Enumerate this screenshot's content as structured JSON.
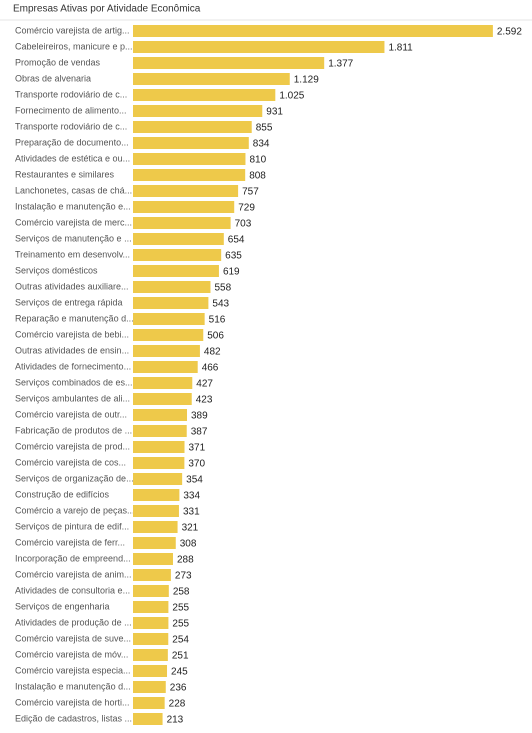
{
  "chart_data": {
    "type": "hbar",
    "title": "Empresas Ativas por Atividade Econômica",
    "color": "#eec94a",
    "xlim": [
      0,
      2600
    ],
    "categories": [
      "Comércio varejista de artig...",
      "Cabeleireiros, manicure e p...",
      "Promoção de vendas",
      "Obras de alvenaria",
      "Transporte rodoviário de c...",
      "Fornecimento de alimento...",
      "Transporte rodoviário de c...",
      "Preparação de documento...",
      "Atividades de estética e ou...",
      "Restaurantes e similares",
      "Lanchonetes, casas de chá...",
      "Instalação e manutenção e...",
      "Comércio varejista de merc...",
      "Serviços de manutenção e ...",
      "Treinamento em desenvolv...",
      "Serviços domésticos",
      "Outras atividades auxiliare...",
      "Serviços de entrega rápida",
      "Reparação e manutenção d...",
      "Comércio varejista de bebi...",
      "Outras atividades de ensin...",
      "Atividades de fornecimento...",
      "Serviços combinados de es...",
      "Serviços ambulantes de ali...",
      "Comércio varejista de outr...",
      "Fabricação de produtos de ...",
      "Comércio varejista de prod...",
      "Comércio varejista de cos...",
      "Serviços de organização de...",
      "Construção de edifícios",
      "Comércio a varejo de peças...",
      "Serviços de pintura de edif...",
      "Comércio varejista de ferr...",
      "Incorporação de empreend...",
      "Comércio varejista de anim...",
      "Atividades de consultoria e...",
      "Serviços de engenharia",
      "Atividades de produção de ...",
      "Comércio varejista de suve...",
      "Comércio varejista de móv...",
      "Comércio varejista especia...",
      "Instalação e manutenção d...",
      "Comércio varejista de horti...",
      "Edição de cadastros, listas ..."
    ],
    "values": [
      2592,
      1811,
      1377,
      1129,
      1025,
      931,
      855,
      834,
      810,
      808,
      757,
      729,
      703,
      654,
      635,
      619,
      558,
      543,
      516,
      506,
      482,
      466,
      427,
      423,
      389,
      387,
      371,
      370,
      354,
      334,
      331,
      321,
      308,
      288,
      273,
      258,
      255,
      255,
      254,
      251,
      245,
      236,
      228,
      213
    ],
    "value_labels": [
      "2.592",
      "1.811",
      "1.377",
      "1.129",
      "1.025",
      "931",
      "855",
      "834",
      "810",
      "808",
      "757",
      "729",
      "703",
      "654",
      "635",
      "619",
      "558",
      "543",
      "516",
      "506",
      "482",
      "466",
      "427",
      "423",
      "389",
      "387",
      "371",
      "370",
      "354",
      "334",
      "331",
      "321",
      "308",
      "288",
      "273",
      "258",
      "255",
      "255",
      "254",
      "251",
      "245",
      "236",
      "228",
      "213"
    ]
  }
}
